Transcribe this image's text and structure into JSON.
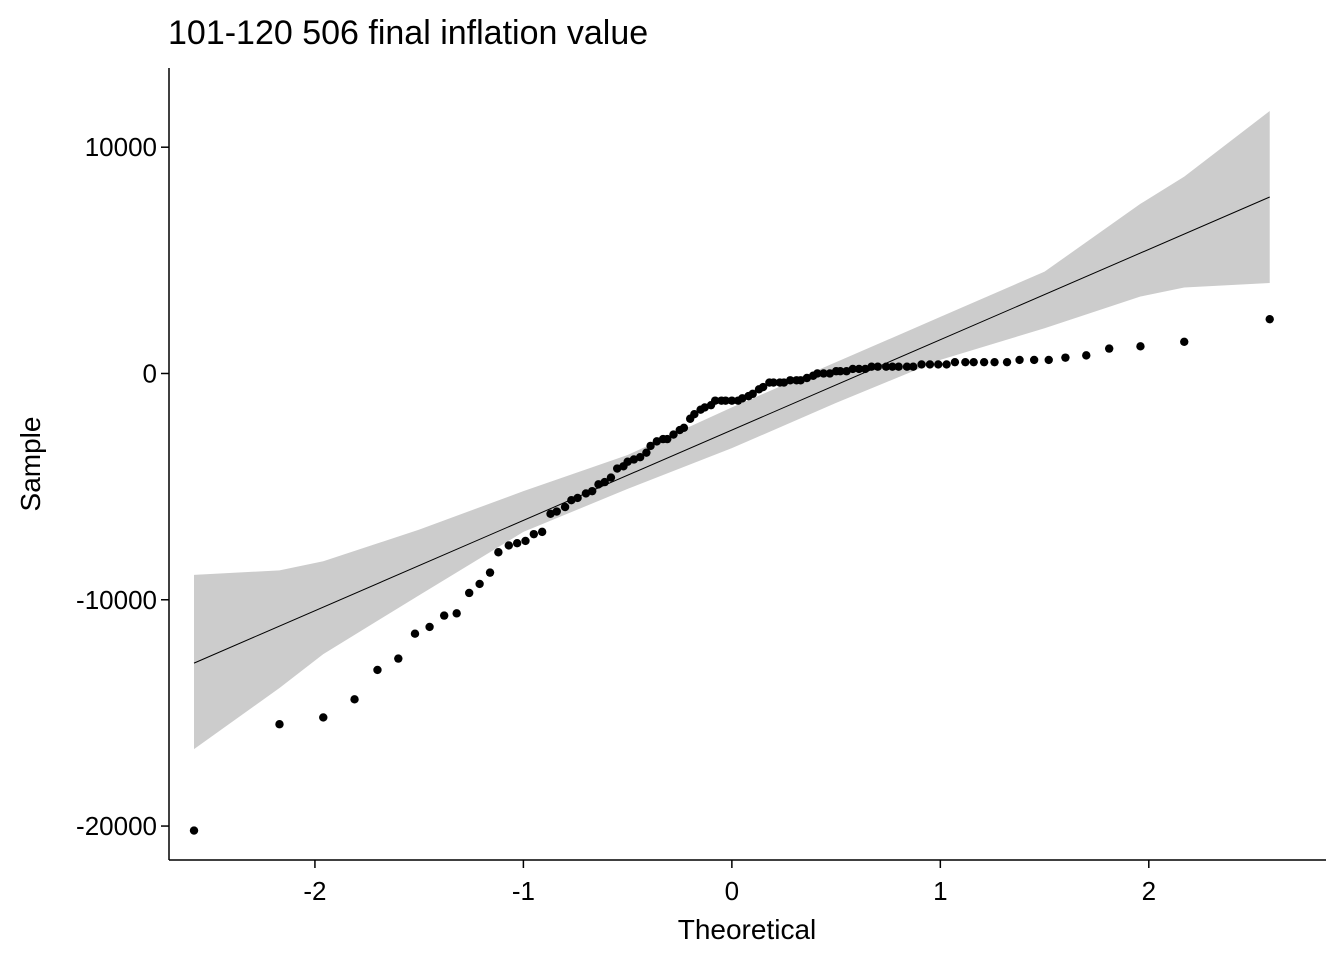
{
  "chart_data": {
    "type": "scatter",
    "title": "101-120 506 final inflation value",
    "xlabel": "Theoretical",
    "ylabel": "Sample",
    "xlim": [
      -2.7,
      2.85
    ],
    "ylim": [
      -21500,
      13500
    ],
    "x_ticks": [
      -2,
      -1,
      0,
      1,
      2
    ],
    "y_ticks": [
      -20000,
      -10000,
      0,
      10000
    ],
    "x_tick_labels": [
      "-2",
      "-1",
      "0",
      "1",
      "2"
    ],
    "y_tick_labels": [
      "-20000",
      "-10000",
      "0",
      "10000"
    ],
    "grid": false,
    "legend": "none",
    "colors": {
      "points": "#000000",
      "line": "#000000",
      "band": "#cccccc",
      "axis": "#000000"
    },
    "reference_line": {
      "x": [
        -2.58,
        2.58
      ],
      "y": [
        -12800,
        7800
      ]
    },
    "confidence_band": {
      "x": [
        -2.58,
        -2.17,
        -1.96,
        -1.5,
        -1.0,
        -0.5,
        0.0,
        0.5,
        1.0,
        1.5,
        1.96,
        2.17,
        2.58
      ],
      "upper": [
        -8900,
        -8700,
        -8300,
        -6900,
        -5200,
        -3600,
        -1500,
        500,
        2500,
        4500,
        7500,
        8700,
        11600
      ],
      "lower": [
        -16600,
        -13900,
        -12400,
        -9800,
        -7000,
        -5100,
        -3300,
        -1300,
        600,
        2000,
        3400,
        3800,
        4000
      ]
    },
    "points": {
      "x": [
        -2.58,
        -2.17,
        -1.96,
        -1.81,
        -1.7,
        -1.6,
        -1.52,
        -1.45,
        -1.38,
        -1.32,
        -1.26,
        -1.21,
        -1.16,
        -1.12,
        -1.07,
        -1.03,
        -0.99,
        -0.95,
        -0.91,
        -0.87,
        -0.84,
        -0.8,
        -0.77,
        -0.74,
        -0.7,
        -0.67,
        -0.64,
        -0.61,
        -0.58,
        -0.55,
        -0.52,
        -0.5,
        -0.47,
        -0.44,
        -0.41,
        -0.39,
        -0.36,
        -0.33,
        -0.31,
        -0.28,
        -0.25,
        -0.23,
        -0.2,
        -0.18,
        -0.15,
        -0.13,
        -0.1,
        -0.08,
        -0.05,
        -0.03,
        0.0,
        0.03,
        0.05,
        0.08,
        0.1,
        0.13,
        0.15,
        0.18,
        0.2,
        0.23,
        0.25,
        0.28,
        0.31,
        0.33,
        0.36,
        0.39,
        0.41,
        0.44,
        0.47,
        0.5,
        0.52,
        0.55,
        0.58,
        0.61,
        0.64,
        0.67,
        0.7,
        0.74,
        0.77,
        0.8,
        0.84,
        0.87,
        0.91,
        0.95,
        0.99,
        1.03,
        1.07,
        1.12,
        1.16,
        1.21,
        1.26,
        1.32,
        1.38,
        1.45,
        1.52,
        1.6,
        1.7,
        1.81,
        1.96,
        2.17,
        2.58
      ],
      "y": [
        -20200,
        -15500,
        -15200,
        -14400,
        -13100,
        -12600,
        -11500,
        -11200,
        -10700,
        -10600,
        -9700,
        -9300,
        -8800,
        -7900,
        -7600,
        -7500,
        -7400,
        -7100,
        -7000,
        -6200,
        -6100,
        -5900,
        -5600,
        -5500,
        -5300,
        -5200,
        -4900,
        -4800,
        -4600,
        -4200,
        -4100,
        -3900,
        -3800,
        -3700,
        -3500,
        -3200,
        -3000,
        -2900,
        -2900,
        -2700,
        -2500,
        -2400,
        -2000,
        -1800,
        -1600,
        -1500,
        -1400,
        -1200,
        -1200,
        -1200,
        -1200,
        -1200,
        -1100,
        -1000,
        -900,
        -700,
        -600,
        -400,
        -400,
        -400,
        -400,
        -300,
        -300,
        -300,
        -200,
        -100,
        0,
        0,
        0,
        100,
        100,
        100,
        200,
        200,
        200,
        300,
        300,
        300,
        300,
        300,
        300,
        300,
        400,
        400,
        400,
        400,
        500,
        500,
        500,
        500,
        500,
        500,
        600,
        600,
        600,
        700,
        800,
        1100,
        1200,
        1400,
        2400
      ]
    }
  }
}
